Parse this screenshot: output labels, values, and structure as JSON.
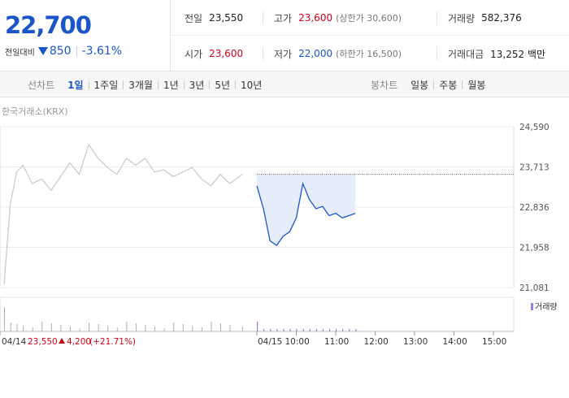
{
  "summary": {
    "price": "22,700",
    "change_label": "전일대비",
    "change_amount": "850",
    "change_rate": "-3.61%",
    "prev_close_label": "전일",
    "prev_close": "23,550",
    "high_label": "고가",
    "high": "23,600",
    "upper_limit": "(상한가 30,600)",
    "volume_label": "거래량",
    "volume": "582,376",
    "open_label": "시가",
    "open": "23,600",
    "low_label": "저가",
    "low": "22,000",
    "lower_limit": "(하한가 16,500)",
    "amount_label": "거래대금",
    "amount": "13,252 백만"
  },
  "tabs": {
    "line_title": "선차트",
    "line": [
      "1일",
      "1주일",
      "3개월",
      "1년",
      "3년",
      "5년",
      "10년"
    ],
    "active_index": 0,
    "candle_title": "봉차트",
    "candle": [
      "일봉",
      "주봉",
      "월봉"
    ]
  },
  "colors": {
    "up": "#d0021b",
    "down": "#1a56c9",
    "prev_line": "#c8c8c8",
    "today_fill": "#e4edf9",
    "volume": "#b0b0b0"
  },
  "chart_data": {
    "type": "line",
    "source_label": "한국거래소(KRX)",
    "yticks": [
      "24,590",
      "23,713",
      "22,836",
      "21,958",
      "21,081"
    ],
    "ylim": [
      21081,
      24590
    ],
    "prev_close": 23550,
    "xticks": [
      "04/14",
      "04/15",
      "10:00",
      "11:00",
      "12:00",
      "13:00",
      "14:00",
      "15:00"
    ],
    "prev_day_footer": {
      "date": "04/14",
      "close": "23,550",
      "change": "4,200",
      "rate": "(+21.71%)"
    },
    "volume_legend": "거래량",
    "series": [
      {
        "x": [
          "04/14 09:00",
          "04/14 09:10",
          "04/14 09:20",
          "04/14 09:30",
          "04/14 09:45",
          "04/14 10:00",
          "04/14 10:15",
          "04/14 10:30",
          "04/14 10:45",
          "04/14 11:00",
          "04/14 11:15",
          "04/14 11:30",
          "04/14 11:45",
          "04/14 12:00",
          "04/14 12:15",
          "04/14 12:30",
          "04/14 12:45",
          "04/14 13:00",
          "04/14 13:15",
          "04/14 13:30",
          "04/14 13:45",
          "04/14 14:00",
          "04/14 14:15",
          "04/14 14:30",
          "04/14 14:45",
          "04/14 15:00",
          "04/14 15:20"
        ],
        "values": [
          21150,
          22900,
          23600,
          23750,
          23350,
          23450,
          23200,
          23500,
          23800,
          23550,
          24200,
          23900,
          23700,
          23550,
          23900,
          23750,
          23900,
          23600,
          23650,
          23500,
          23600,
          23700,
          23450,
          23300,
          23550,
          23350,
          23550
        ]
      },
      {
        "x": [
          "04/15 09:00",
          "04/15 09:10",
          "04/15 09:20",
          "04/15 09:30",
          "04/15 09:40",
          "04/15 09:50",
          "04/15 10:00",
          "04/15 10:10",
          "04/15 10:20",
          "04/15 10:30",
          "04/15 10:40",
          "04/15 10:50",
          "04/15 11:00",
          "04/15 11:10",
          "04/15 11:20",
          "04/15 11:30"
        ],
        "values": [
          23300,
          22800,
          22100,
          22000,
          22200,
          22300,
          22600,
          23350,
          23000,
          22800,
          22850,
          22650,
          22700,
          22600,
          22650,
          22700
        ]
      }
    ]
  }
}
